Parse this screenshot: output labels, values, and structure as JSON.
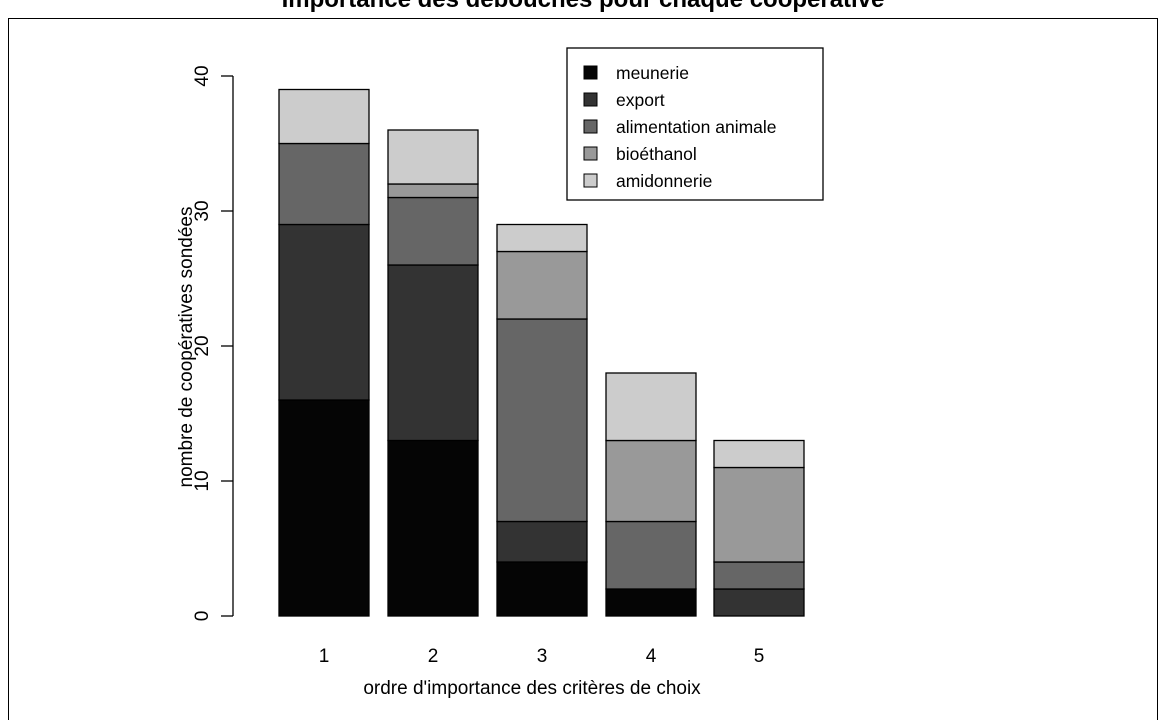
{
  "title": "Importance des débouchés pour chaque coopérative",
  "chart_data": {
    "type": "bar",
    "stacked": true,
    "title": "Importance des débouchés pour chaque coopérative",
    "xlabel": "ordre d'importance des critères de choix",
    "ylabel": "nombre de coopératives sondées",
    "categories": [
      "1",
      "2",
      "3",
      "4",
      "5"
    ],
    "ylim": [
      0,
      40
    ],
    "yticks": [
      "0",
      "10",
      "20",
      "30",
      "40"
    ],
    "legend_position": "top-right",
    "grid": false,
    "series": [
      {
        "name": "meunerie",
        "color": "#050505",
        "values": [
          16,
          13,
          4,
          2,
          0
        ]
      },
      {
        "name": "export",
        "color": "#333333",
        "values": [
          13,
          13,
          3,
          0,
          2
        ]
      },
      {
        "name": "alimentation animale",
        "color": "#666666",
        "values": [
          6,
          5,
          15,
          5,
          2
        ]
      },
      {
        "name": "bioéthanol",
        "color": "#999999",
        "values": [
          0,
          1,
          5,
          6,
          7
        ]
      },
      {
        "name": "amidonnerie",
        "color": "#cccccc",
        "values": [
          4,
          4,
          2,
          5,
          2
        ]
      }
    ]
  }
}
